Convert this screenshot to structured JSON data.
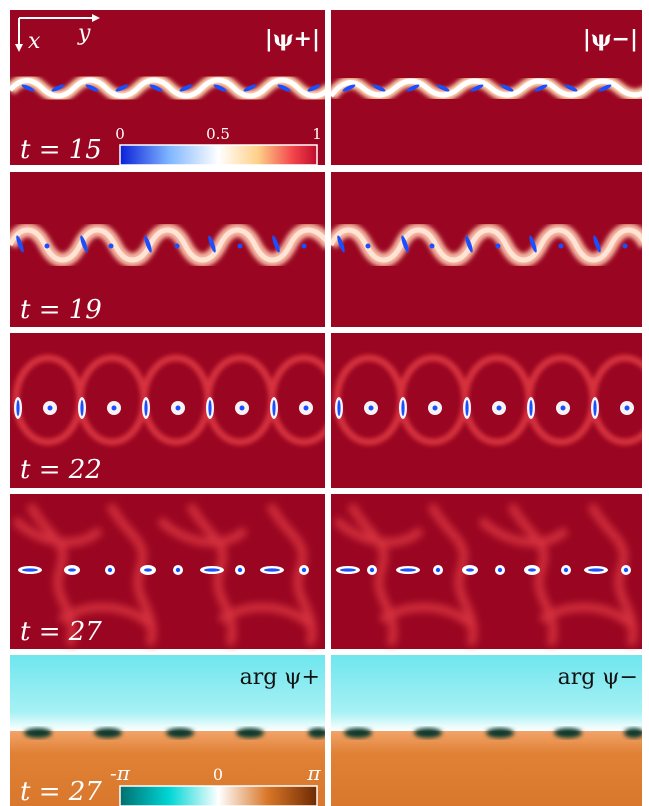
{
  "figure": {
    "axes": {
      "x_label": "x",
      "y_label": "y"
    },
    "rows": [
      {
        "time_label": "t = 15",
        "panels": [
          {
            "title": "|ψ+|"
          },
          {
            "title": "|ψ−|"
          }
        ]
      },
      {
        "time_label": "t = 19"
      },
      {
        "time_label": "t = 22"
      },
      {
        "time_label": "t = 27"
      },
      {
        "time_label": "t = 27",
        "panels": [
          {
            "title": "arg ψ+"
          },
          {
            "title": "arg ψ−"
          }
        ]
      }
    ],
    "amplitude_colorbar": {
      "ticks": [
        "0",
        "0.5",
        "1"
      ],
      "colors": [
        "#0b1fd8",
        "#7fb6ff",
        "#ffffff",
        "#ffd089",
        "#f2444a",
        "#9a0621"
      ]
    },
    "phase_colorbar": {
      "ticks": [
        "-π",
        "0",
        "π"
      ],
      "colors": [
        "#006f6f",
        "#00d6d6",
        "#ffffff",
        "#d97627",
        "#6e2a03"
      ]
    },
    "colors": {
      "background_amplitude": "#9a0621",
      "vortex_core": "#1a4fff",
      "phase_upper": "#7fe8ef",
      "phase_lower": "#d9782d",
      "phase_defect": "#0e3b2e"
    }
  }
}
